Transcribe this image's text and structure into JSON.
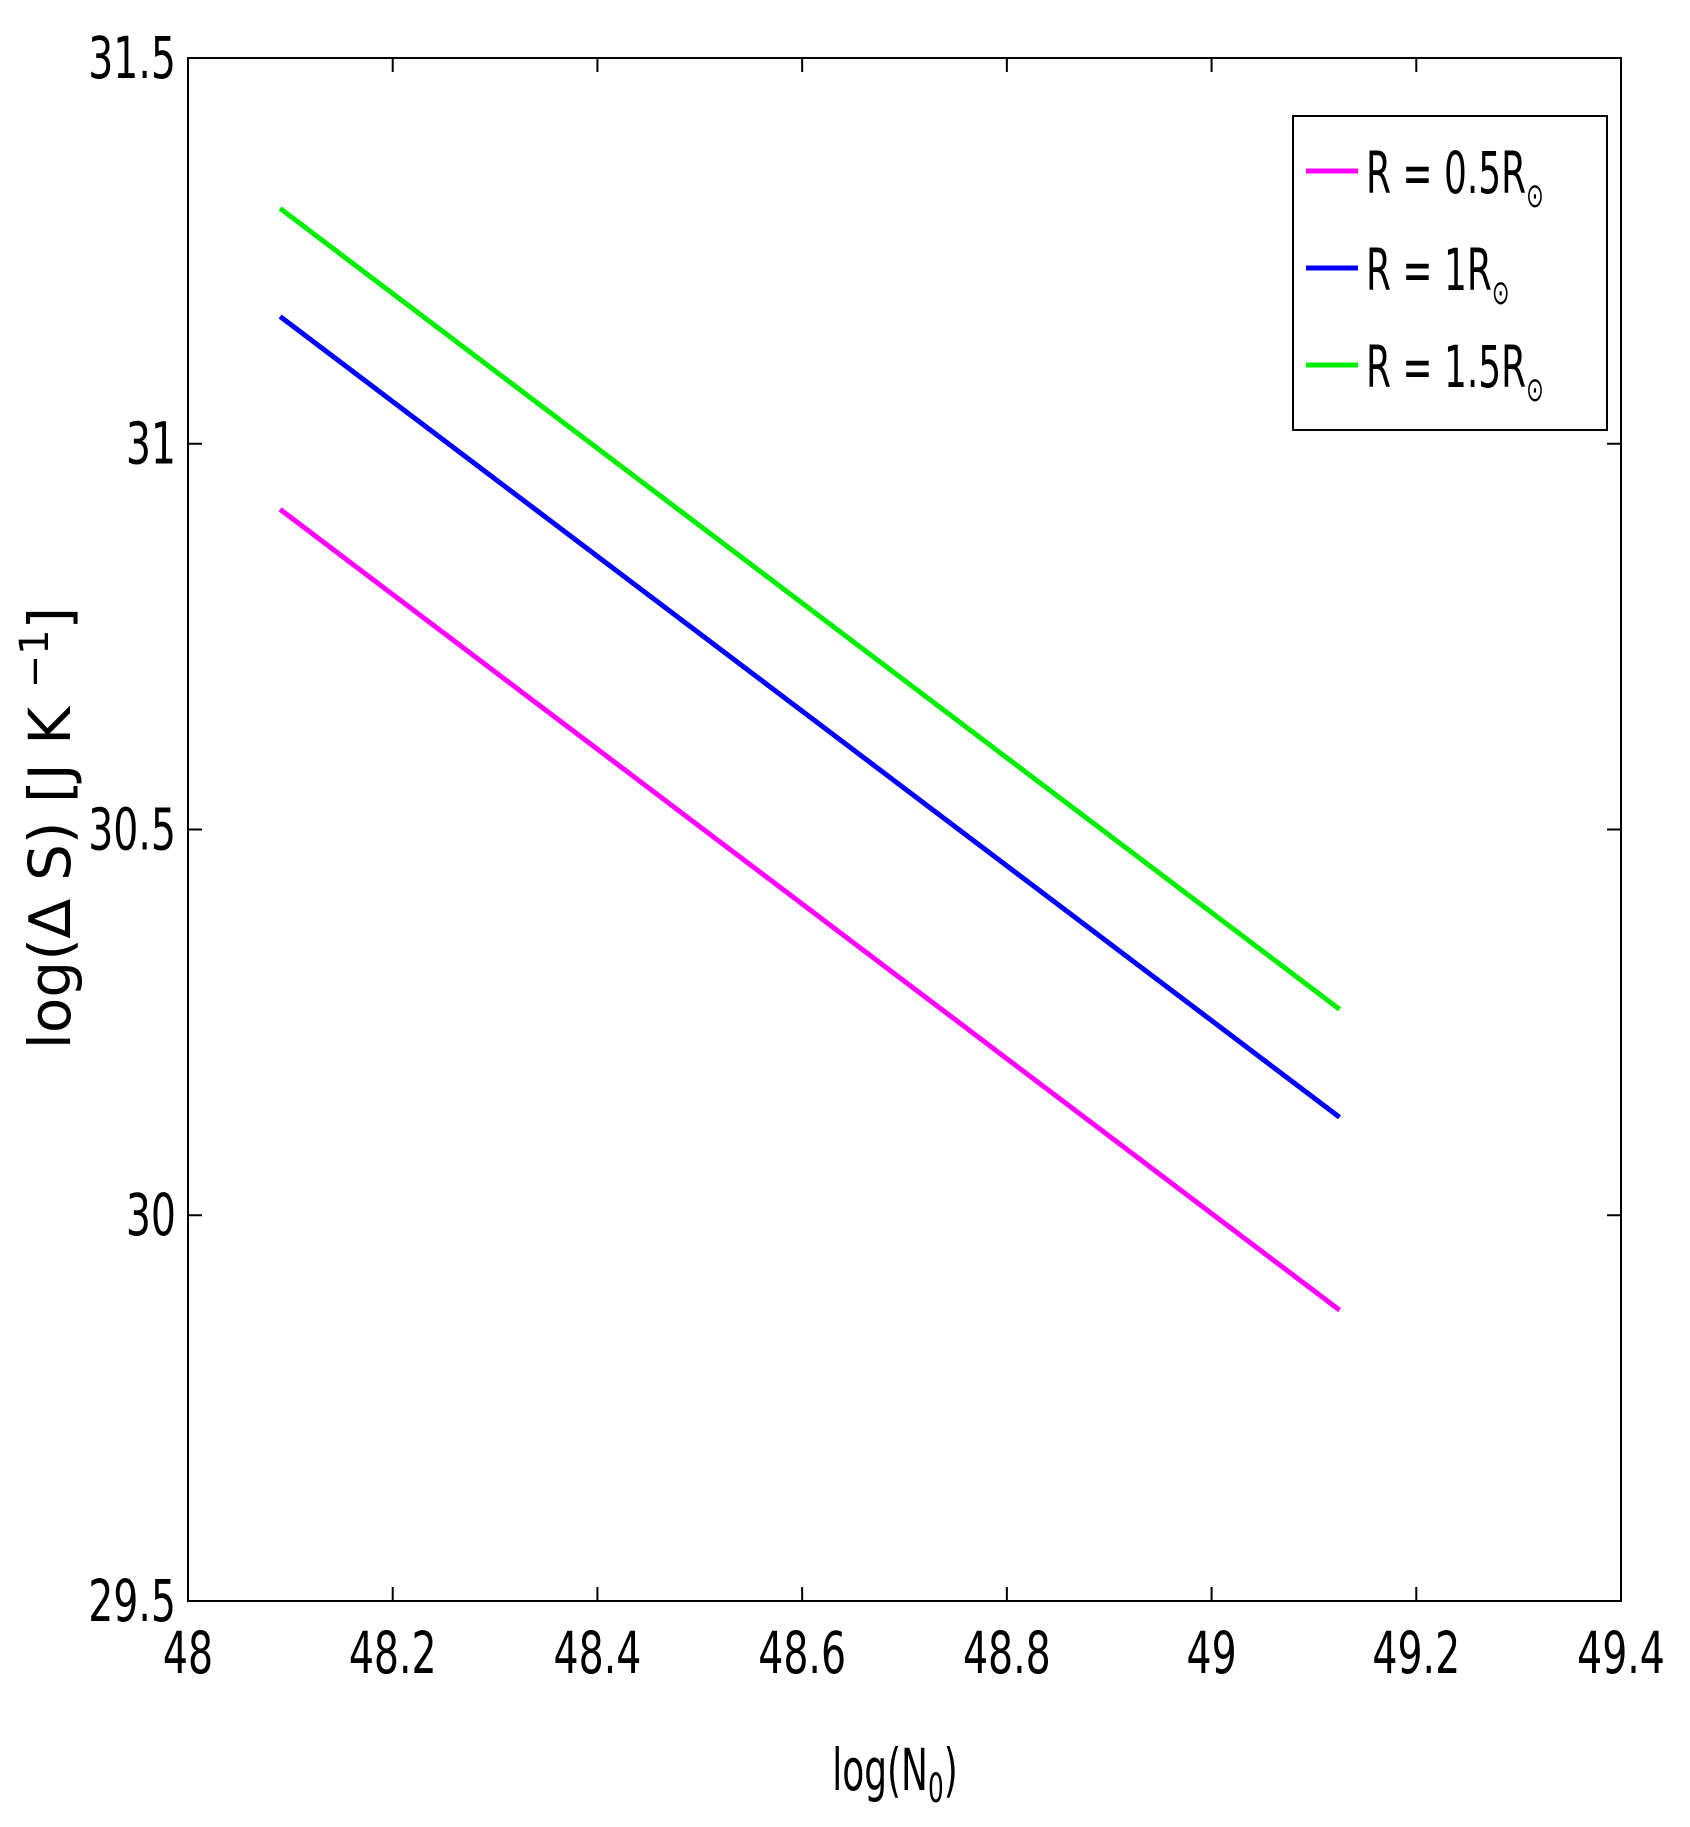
{
  "chart_data": {
    "type": "line",
    "xlabel": "log(N",
    "xlabel_sub": "0",
    "xlabel_close": ")",
    "ylabel": "log(∆ S) [J K ",
    "ylabel_sup": "−1",
    "ylabel_close": "]",
    "xlim": [
      48,
      49.4
    ],
    "ylim": [
      29.5,
      31.5
    ],
    "xticks": [
      48,
      48.2,
      48.4,
      48.6,
      48.8,
      49,
      49.2,
      49.4
    ],
    "xtick_labels": [
      "48",
      "48.2",
      "48.4",
      "48.6",
      "48.8",
      "49",
      "49.2",
      "49.4"
    ],
    "yticks": [
      29.5,
      30,
      30.5,
      31,
      31.5
    ],
    "ytick_labels": [
      "29.5",
      "30",
      "30.5",
      "31",
      "31.5"
    ],
    "grid": false,
    "legend_position": "top-right",
    "sun_symbol": "⊙",
    "series": [
      {
        "name": "R = 0.5R",
        "color": "#ff00ff",
        "x": [
          48.09,
          49.125
        ],
        "y": [
          30.915,
          29.877
        ]
      },
      {
        "name": "R = 1R",
        "color": "#0000ff",
        "x": [
          48.09,
          49.125
        ],
        "y": [
          31.165,
          30.127
        ]
      },
      {
        "name": "R = 1.5R",
        "color": "#00ee00",
        "x": [
          48.09,
          49.125
        ],
        "y": [
          31.305,
          30.267
        ]
      }
    ]
  }
}
